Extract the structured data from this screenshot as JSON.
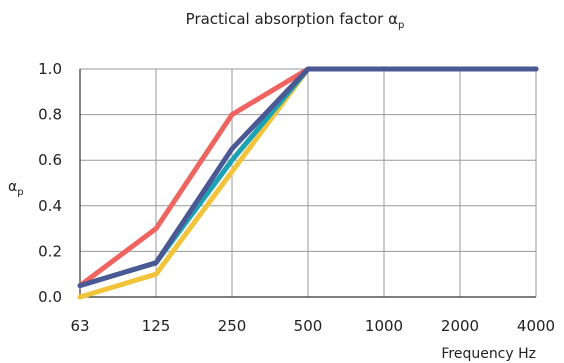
{
  "chart_data": {
    "type": "line",
    "title": "Practical absorption factor αp",
    "title_main": "Practical absorption factor α",
    "title_sub": "p",
    "ylabel_main": "α",
    "ylabel_sub": "p",
    "xlabel": "Frequency Hz",
    "categories": [
      "63",
      "125",
      "250",
      "500",
      "1000",
      "2000",
      "4000"
    ],
    "y_ticks": [
      "0.0",
      "0.2",
      "0.4",
      "0.6",
      "0.8",
      "1.0"
    ],
    "ylim": [
      0,
      1.0
    ],
    "grid": true,
    "series": [
      {
        "color": "#f2c43c",
        "values": [
          0.0,
          0.1,
          0.55,
          1.0,
          1.0,
          1.0,
          1.0
        ]
      },
      {
        "color": "#1ba3b4",
        "values": [
          0.05,
          0.15,
          0.6,
          1.0,
          1.0,
          1.0,
          1.0
        ]
      },
      {
        "color": "#ef6461",
        "values": [
          0.05,
          0.3,
          0.8,
          1.0,
          1.0,
          1.0,
          1.0
        ]
      },
      {
        "color": "#4a5894",
        "values": [
          0.05,
          0.15,
          0.65,
          1.0,
          1.0,
          1.0,
          1.0
        ]
      }
    ]
  }
}
